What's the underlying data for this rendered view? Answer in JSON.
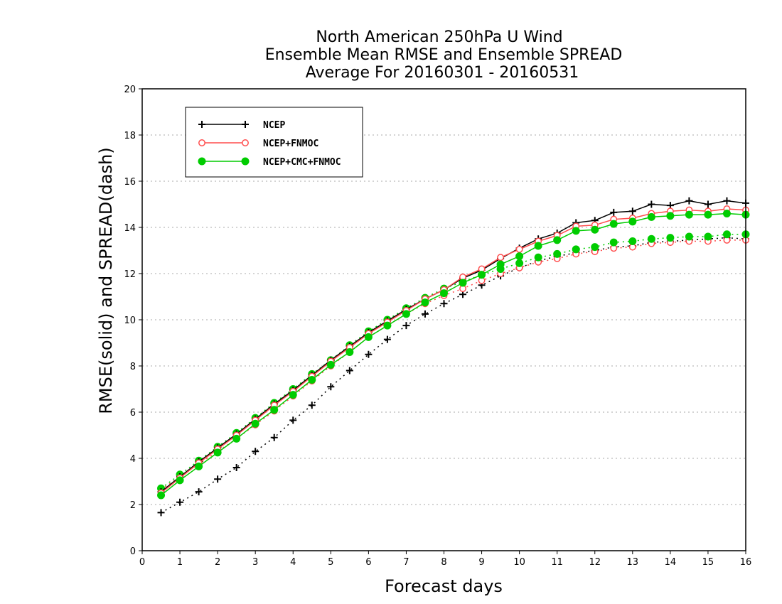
{
  "chart_data": {
    "type": "line",
    "title_lines": [
      "North American 250hPa U Wind",
      "Ensemble Mean RMSE and Ensemble SPREAD",
      "Average For 20160301 - 20160531"
    ],
    "xlabel": "Forecast days",
    "ylabel": "RMSE(solid) and SPREAD(dash)",
    "xlim": [
      0,
      16
    ],
    "ylim": [
      0,
      20
    ],
    "x_ticks": [
      0,
      1,
      2,
      3,
      4,
      5,
      6,
      7,
      8,
      9,
      10,
      11,
      12,
      13,
      14,
      15,
      16
    ],
    "y_ticks": [
      0,
      2,
      4,
      6,
      8,
      10,
      12,
      14,
      16,
      18,
      20
    ],
    "grid": "horizontal dotted",
    "legend_position": "top-left",
    "x": [
      0.5,
      1,
      1.5,
      2,
      2.5,
      3,
      3.5,
      4,
      4.5,
      5,
      5.5,
      6,
      6.5,
      7,
      7.5,
      8,
      8.5,
      9,
      9.5,
      10,
      10.5,
      11,
      11.5,
      12,
      12.5,
      13,
      13.5,
      14,
      14.5,
      15,
      15.5,
      16
    ],
    "series": [
      {
        "name": "NCEP",
        "color": "#000000",
        "marker": "plus",
        "rmse": [
          2.55,
          3.2,
          3.85,
          4.45,
          5.05,
          5.7,
          6.35,
          6.95,
          7.6,
          8.25,
          8.85,
          9.45,
          9.95,
          10.45,
          10.9,
          11.3,
          11.8,
          12.15,
          12.65,
          13.1,
          13.5,
          13.75,
          14.2,
          14.3,
          14.65,
          14.7,
          15.0,
          14.95,
          15.15,
          15.0,
          15.15,
          15.05
        ],
        "spread": [
          1.65,
          2.1,
          2.55,
          3.1,
          3.6,
          4.3,
          4.9,
          5.65,
          6.3,
          7.1,
          7.8,
          8.5,
          9.15,
          9.75,
          10.25,
          10.7,
          11.1,
          11.5,
          11.9,
          12.25,
          12.55,
          12.75,
          12.9,
          13.0,
          13.15,
          13.2,
          13.35,
          13.4,
          13.45,
          13.5,
          13.55,
          13.5
        ]
      },
      {
        "name": "NCEP+FNMOC",
        "color": "#ff4d4d",
        "marker": "open-circle",
        "rmse": [
          2.5,
          3.15,
          3.8,
          4.4,
          5.0,
          5.65,
          6.3,
          6.9,
          7.55,
          8.2,
          8.8,
          9.4,
          9.9,
          10.4,
          10.9,
          11.3,
          11.85,
          12.2,
          12.7,
          13.05,
          13.4,
          13.65,
          14.05,
          14.1,
          14.35,
          14.4,
          14.6,
          14.7,
          14.75,
          14.7,
          14.8,
          14.75
        ],
        "spread": [
          2.65,
          3.2,
          3.75,
          4.3,
          4.85,
          5.45,
          6.05,
          6.7,
          7.35,
          8.0,
          8.6,
          9.25,
          9.75,
          10.25,
          10.7,
          11.05,
          11.35,
          11.7,
          12.0,
          12.25,
          12.5,
          12.65,
          12.85,
          12.95,
          13.1,
          13.15,
          13.3,
          13.35,
          13.4,
          13.4,
          13.45,
          13.45
        ]
      },
      {
        "name": "NCEP+CMC+FNMOC",
        "color": "#00cc00",
        "marker": "filled-circle",
        "rmse": [
          2.4,
          3.05,
          3.65,
          4.25,
          4.85,
          5.5,
          6.1,
          6.75,
          7.4,
          8.05,
          8.6,
          9.25,
          9.75,
          10.25,
          10.75,
          11.15,
          11.6,
          11.95,
          12.4,
          12.75,
          13.2,
          13.45,
          13.85,
          13.9,
          14.15,
          14.25,
          14.45,
          14.5,
          14.55,
          14.55,
          14.6,
          14.55
        ],
        "spread": [
          2.7,
          3.3,
          3.9,
          4.5,
          5.1,
          5.75,
          6.4,
          7.0,
          7.65,
          8.25,
          8.9,
          9.5,
          10.0,
          10.5,
          10.95,
          11.35,
          11.65,
          11.95,
          12.2,
          12.45,
          12.7,
          12.85,
          13.05,
          13.15,
          13.35,
          13.4,
          13.5,
          13.55,
          13.6,
          13.6,
          13.7,
          13.7
        ]
      }
    ]
  }
}
